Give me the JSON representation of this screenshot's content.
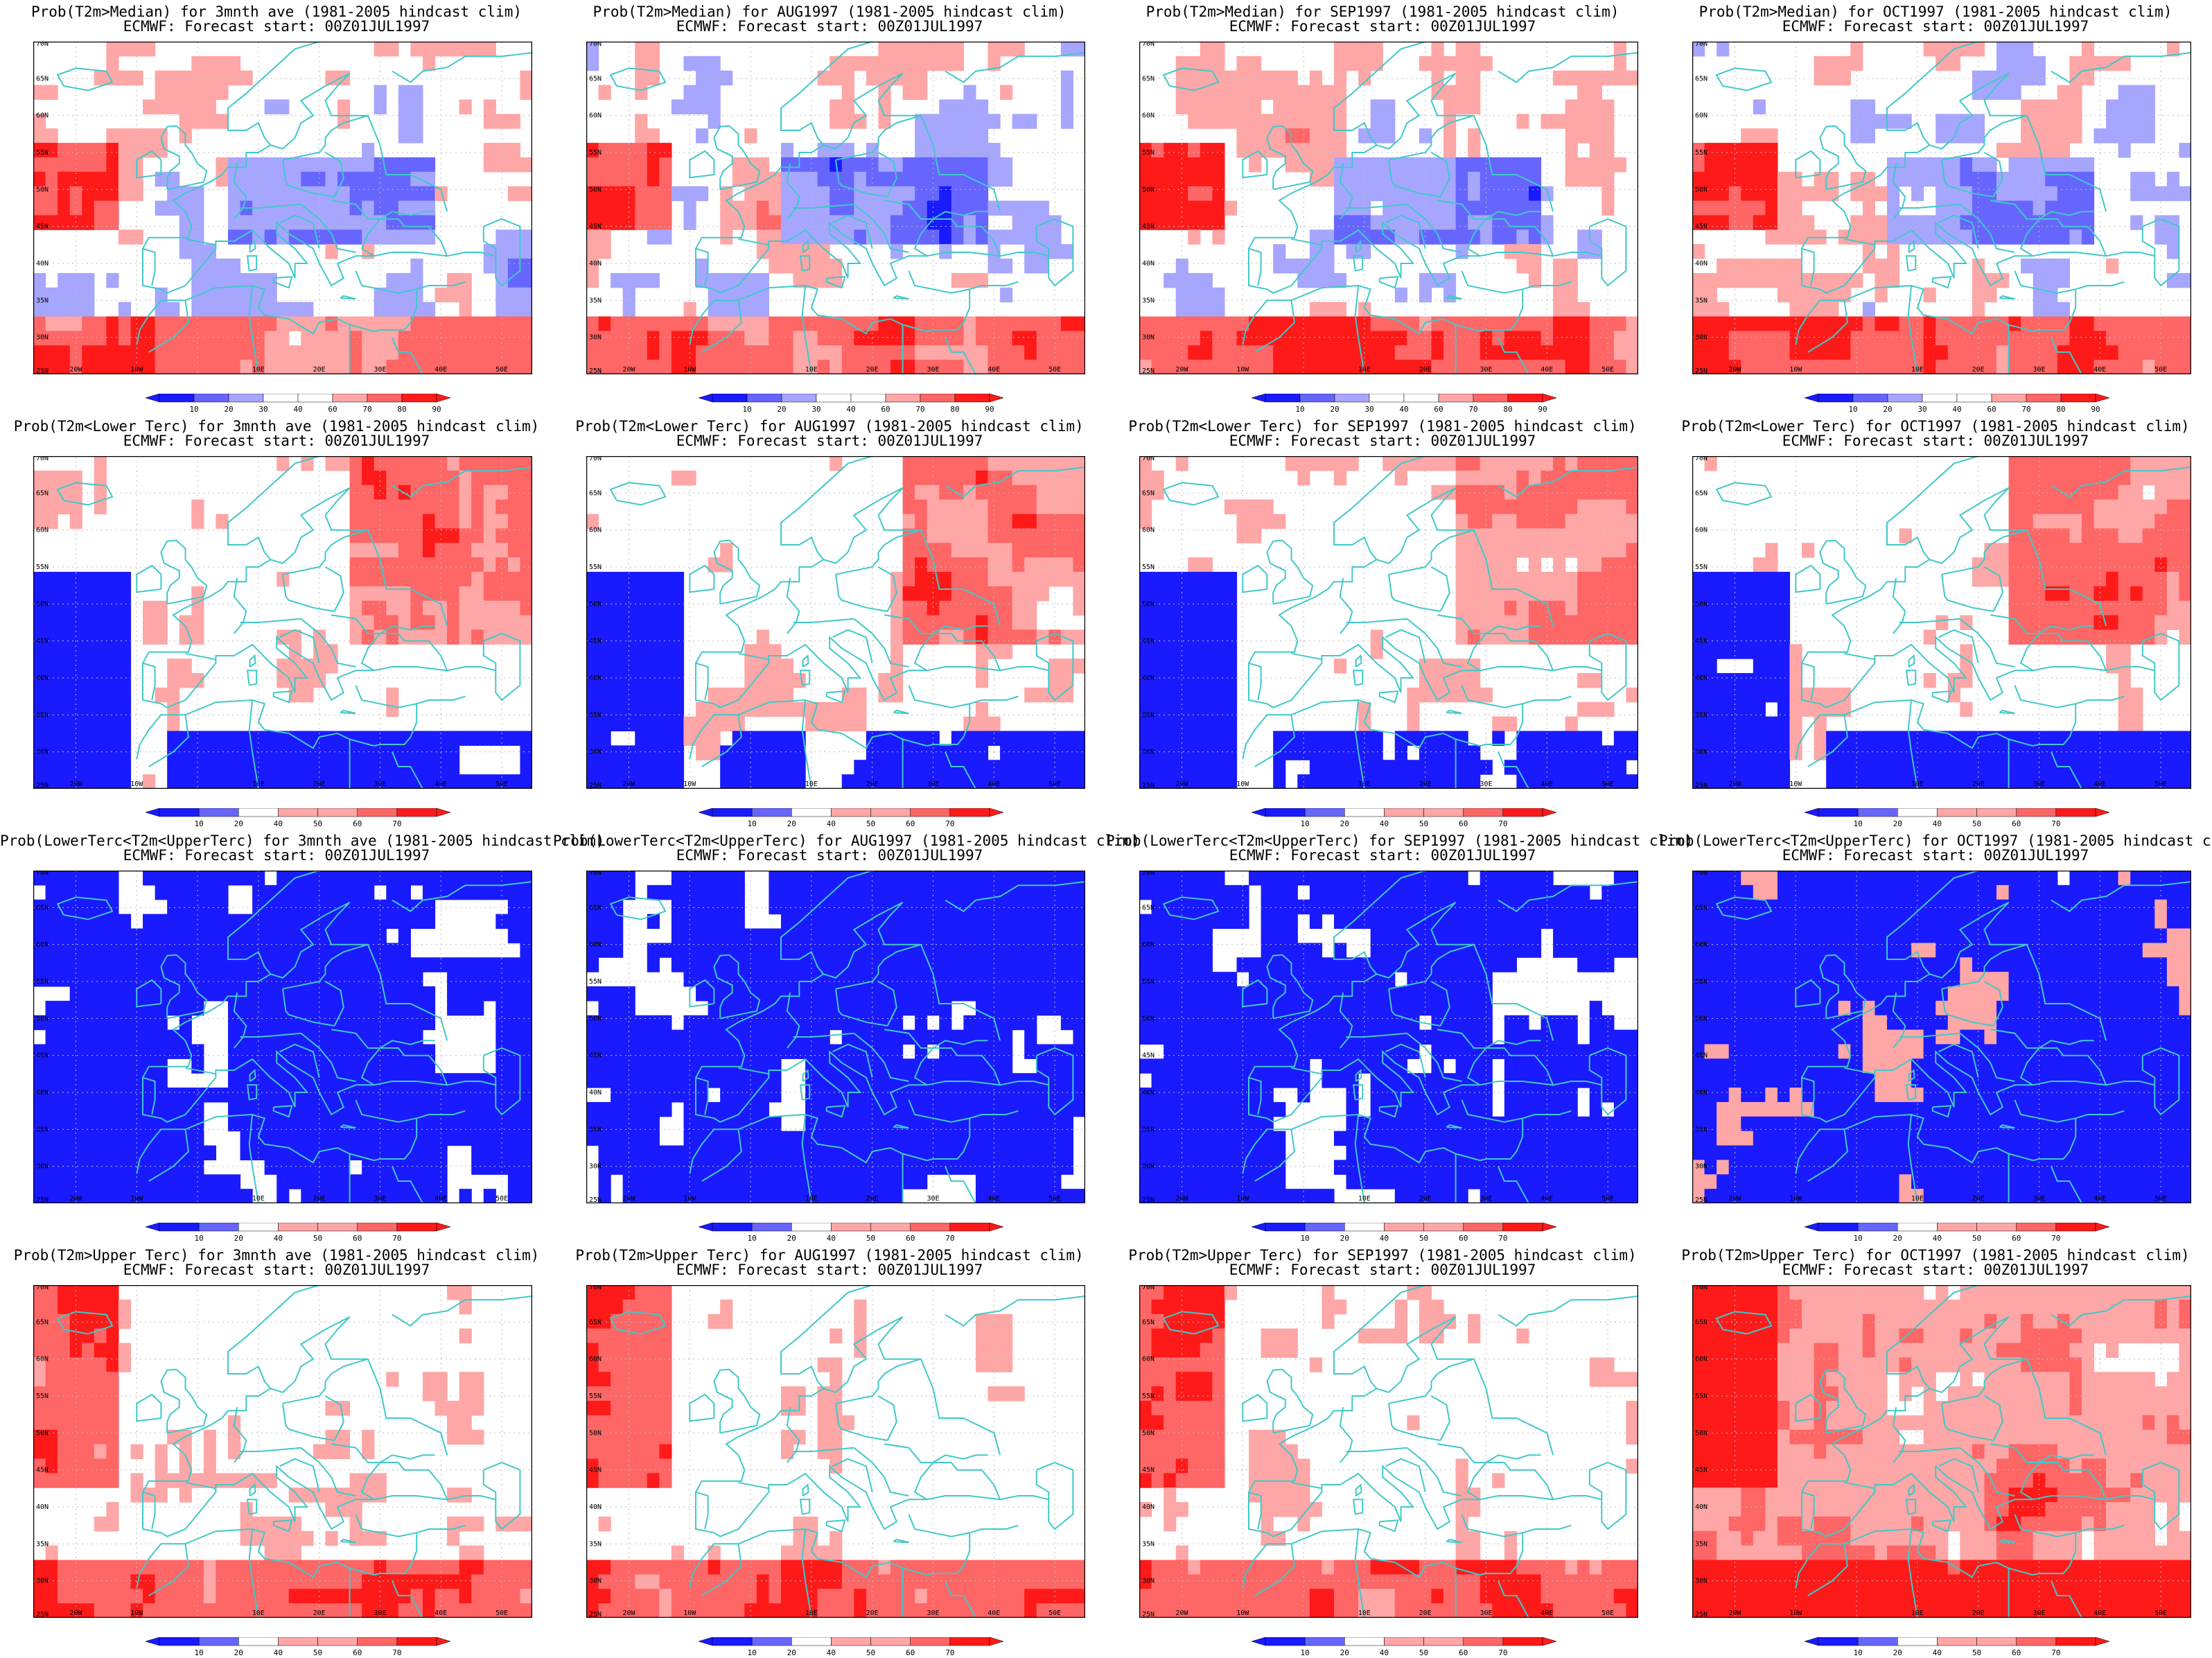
{
  "subtitle": "ECMWF: Forecast start: 00Z01JUL1997",
  "colors": {
    "blue_dark": "#1a1aff",
    "blue_mid": "#6666ff",
    "blue_light": "#a6a6ff",
    "white": "#ffffff",
    "red_light": "#ffa6a6",
    "red_mid": "#ff6666",
    "red_dark": "#ff1a1a",
    "coast": "#40c8c8",
    "gridline": "#bbbbbb"
  },
  "axes": {
    "lat_ticks": [
      "70N",
      "65N",
      "60N",
      "55N",
      "50N",
      "45N",
      "40N",
      "35N",
      "30N",
      "25N"
    ],
    "lon_ticks": [
      "20W",
      "10W",
      "10E",
      "20E",
      "30E",
      "40E",
      "50E"
    ]
  },
  "legends": {
    "median": [
      "10",
      "20",
      "30",
      "40",
      "60",
      "70",
      "80",
      "90"
    ],
    "terc": [
      "10",
      "20",
      "40",
      "50",
      "60",
      "70"
    ]
  },
  "rows": [
    {
      "legend": "median",
      "panels": [
        {
          "title": "Prob(T2m>Median) for 3mnth ave (1981-2005 hindcast clim)"
        },
        {
          "title": "Prob(T2m>Median) for AUG1997 (1981-2005 hindcast clim)"
        },
        {
          "title": "Prob(T2m>Median) for SEP1997 (1981-2005 hindcast clim)"
        },
        {
          "title": "Prob(T2m>Median) for OCT1997 (1981-2005 hindcast clim)"
        }
      ]
    },
    {
      "legend": "terc",
      "panels": [
        {
          "title": "Prob(T2m<Lower Terc) for 3mnth ave (1981-2005 hindcast clim)"
        },
        {
          "title": "Prob(T2m<Lower Terc) for AUG1997 (1981-2005 hindcast clim)"
        },
        {
          "title": "Prob(T2m<Lower Terc) for SEP1997 (1981-2005 hindcast clim)"
        },
        {
          "title": "Prob(T2m<Lower Terc) for OCT1997 (1981-2005 hindcast clim)"
        }
      ]
    },
    {
      "legend": "terc",
      "panels": [
        {
          "title": "Prob(LowerTerc<T2m<UpperTerc) for 3mnth ave (1981-2005 hindcast clim)"
        },
        {
          "title": "Prob(LowerTerc<T2m<UpperTerc) for AUG1997 (1981-2005 hindcast clim)"
        },
        {
          "title": "Prob(LowerTerc<T2m<UpperTerc) for SEP1997 (1981-2005 hindcast clim)"
        },
        {
          "title": "Prob(LowerTerc<T2m<UpperTerc) for OCT1997 (1981-2005 hindcast clim)"
        }
      ]
    },
    {
      "legend": "terc",
      "panels": [
        {
          "title": "Prob(T2m>Upper Terc) for 3mnth ave (1981-2005 hindcast clim)"
        },
        {
          "title": "Prob(T2m>Upper Terc) for AUG1997 (1981-2005 hindcast clim)"
        },
        {
          "title": "Prob(T2m>Upper Terc) for SEP1997 (1981-2005 hindcast clim)"
        },
        {
          "title": "Prob(T2m>Upper Terc) for OCT1997 (1981-2005 hindcast clim)"
        }
      ]
    }
  ]
}
